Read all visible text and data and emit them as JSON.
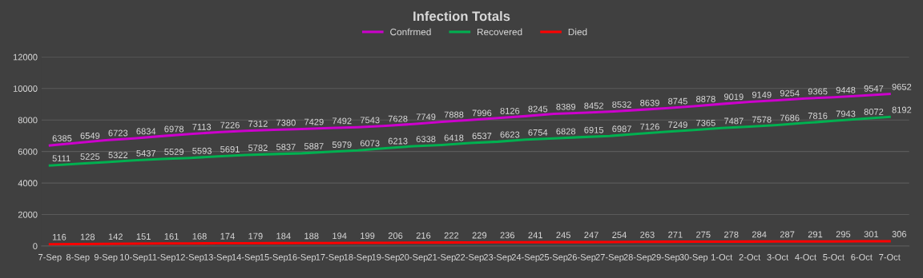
{
  "chart_data": {
    "type": "line",
    "title": "Infection Totals",
    "categories": [
      "7-Sep",
      "8-Sep",
      "9-Sep",
      "10-Sep",
      "11-Sep",
      "12-Sep",
      "13-Sep",
      "14-Sep",
      "15-Sep",
      "16-Sep",
      "17-Sep",
      "18-Sep",
      "19-Sep",
      "20-Sep",
      "21-Sep",
      "22-Sep",
      "23-Sep",
      "24-Sep",
      "25-Sep",
      "26-Sep",
      "27-Sep",
      "28-Sep",
      "29-Sep",
      "30-Sep",
      "1-Oct",
      "2-Oct",
      "3-Oct",
      "4-Oct",
      "5-Oct",
      "6-Oct",
      "7-Oct"
    ],
    "series": [
      {
        "name": "Confrmed",
        "color": "#cc00cc",
        "values": [
          6385,
          6549,
          6723,
          6834,
          6978,
          7113,
          7226,
          7312,
          7380,
          7429,
          7492,
          7543,
          7628,
          7749,
          7888,
          7996,
          8126,
          8245,
          8389,
          8452,
          8532,
          8639,
          8745,
          8878,
          9019,
          9149,
          9254,
          9365,
          9448,
          9547,
          9652
        ]
      },
      {
        "name": "Recovered",
        "color": "#00b050",
        "values": [
          5111,
          5225,
          5322,
          5437,
          5529,
          5593,
          5691,
          5782,
          5837,
          5887,
          5979,
          6073,
          6213,
          6338,
          6418,
          6537,
          6623,
          6754,
          6828,
          6915,
          6987,
          7126,
          7249,
          7365,
          7487,
          7578,
          7686,
          7816,
          7943,
          8072,
          8192
        ]
      },
      {
        "name": "Died",
        "color": "#ff0000",
        "values": [
          116,
          128,
          142,
          151,
          161,
          168,
          174,
          179,
          184,
          188,
          194,
          199,
          206,
          216,
          222,
          229,
          236,
          241,
          245,
          247,
          254,
          263,
          271,
          275,
          278,
          284,
          287,
          291,
          295,
          301,
          306
        ]
      }
    ],
    "ylim": [
      0,
      12000
    ],
    "yticks": [
      0,
      2000,
      4000,
      6000,
      8000,
      10000,
      12000
    ],
    "grid": "y",
    "legend": "top",
    "marker": "none",
    "line_style": "solid",
    "data_labels": true
  }
}
